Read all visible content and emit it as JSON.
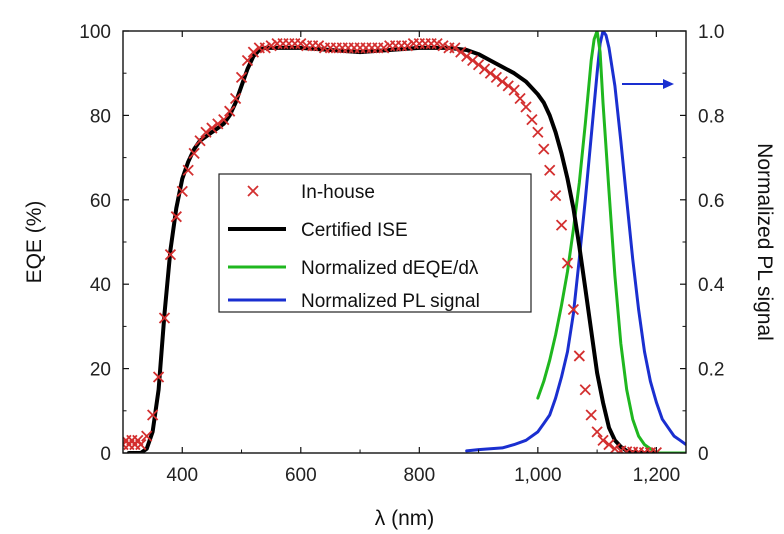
{
  "chart_data": {
    "type": "line",
    "title": "",
    "xlabel": "λ (nm)",
    "ylabel_left": "EQE (%)",
    "ylabel_right": "Normalized PL signal",
    "xlim": [
      300,
      1250
    ],
    "ylim_left": [
      0,
      100
    ],
    "ylim_right": [
      0,
      1.0
    ],
    "xticks": [
      400,
      600,
      800,
      1000,
      1200
    ],
    "xtick_labels": [
      "400",
      "600",
      "800",
      "1,000",
      "1,200"
    ],
    "yticks_left": [
      0,
      20,
      40,
      60,
      80,
      100
    ],
    "ytick_labels_left": [
      "0",
      "20",
      "40",
      "60",
      "80",
      "100"
    ],
    "yticks_right": [
      0,
      0.2,
      0.4,
      0.6,
      0.8,
      1.0
    ],
    "ytick_labels_right": [
      "0",
      "0.2",
      "0.4",
      "0.6",
      "0.8",
      "1.0"
    ],
    "grid": false,
    "legend_position": "center-left",
    "annotations": [
      {
        "type": "arrow",
        "direction": "right",
        "points_to": "right-axis",
        "color": "#1a2fd0"
      }
    ],
    "series": [
      {
        "name": "In-house",
        "axis": "left",
        "style": "marker-x",
        "color": "#d32f2f",
        "x": [
          300,
          305,
          310,
          315,
          320,
          325,
          330,
          340,
          350,
          360,
          370,
          380,
          390,
          400,
          410,
          420,
          430,
          440,
          450,
          460,
          470,
          480,
          490,
          500,
          510,
          520,
          530,
          540,
          550,
          560,
          570,
          580,
          590,
          600,
          610,
          620,
          630,
          640,
          650,
          660,
          670,
          680,
          690,
          700,
          710,
          720,
          730,
          740,
          750,
          760,
          770,
          780,
          790,
          800,
          810,
          820,
          830,
          840,
          850,
          860,
          870,
          880,
          890,
          900,
          910,
          920,
          930,
          940,
          950,
          960,
          970,
          980,
          990,
          1000,
          1010,
          1020,
          1030,
          1040,
          1050,
          1060,
          1070,
          1080,
          1090,
          1100,
          1110,
          1120,
          1130,
          1140,
          1150,
          1160,
          1170,
          1180,
          1190,
          1200
        ],
        "y": [
          2,
          3,
          2,
          3,
          2,
          3,
          2,
          4,
          9,
          18,
          32,
          47,
          56,
          62,
          67,
          71,
          74,
          76,
          77,
          78,
          79,
          81,
          84,
          89,
          93,
          95,
          96,
          96,
          96.5,
          97,
          97,
          97,
          97,
          97,
          96.5,
          96.5,
          96.5,
          96,
          96,
          96,
          96,
          96,
          96,
          96,
          96,
          96,
          96,
          96,
          96.5,
          96.5,
          96.5,
          96.5,
          97,
          97,
          97,
          97,
          97,
          96.5,
          96,
          96,
          95,
          94,
          93,
          92,
          91,
          90,
          89,
          88,
          87,
          86,
          84,
          82,
          79,
          76,
          72,
          67,
          61,
          54,
          45,
          34,
          23,
          15,
          9,
          5,
          3,
          2,
          1,
          0.5,
          0.3,
          0.2,
          0.2,
          0.1,
          0.1,
          0.1
        ]
      },
      {
        "name": "Certified ISE",
        "axis": "left",
        "style": "line",
        "color": "#000000",
        "x": [
          310,
          320,
          330,
          340,
          350,
          360,
          370,
          380,
          390,
          400,
          410,
          420,
          430,
          440,
          450,
          460,
          470,
          480,
          490,
          500,
          510,
          520,
          530,
          540,
          550,
          560,
          580,
          600,
          650,
          700,
          750,
          800,
          850,
          880,
          900,
          920,
          940,
          960,
          980,
          1000,
          1010,
          1020,
          1030,
          1040,
          1050,
          1060,
          1070,
          1080,
          1090,
          1100,
          1110,
          1120,
          1130,
          1140,
          1150,
          1160,
          1170,
          1180,
          1200
        ],
        "y": [
          0,
          0,
          0,
          1,
          5,
          15,
          33,
          48,
          58,
          65,
          69,
          72,
          74,
          75,
          76,
          77,
          78,
          80,
          83,
          87,
          91,
          94,
          95.5,
          96,
          96,
          96,
          96,
          96,
          95.5,
          95,
          95.5,
          96,
          96,
          95.5,
          94.5,
          93,
          91.5,
          90,
          88,
          85,
          83,
          80,
          76,
          71,
          65,
          58,
          49,
          39,
          29,
          19,
          12,
          6,
          3,
          1.5,
          0.5,
          0.2,
          0,
          0,
          0
        ]
      },
      {
        "name": "Normalized dEQE/dλ",
        "axis": "right",
        "style": "line",
        "color": "#1fb71f",
        "x": [
          1000,
          1010,
          1020,
          1030,
          1040,
          1050,
          1060,
          1070,
          1080,
          1090,
          1095,
          1100,
          1105,
          1110,
          1120,
          1130,
          1140,
          1150,
          1160,
          1170,
          1180,
          1190,
          1200,
          1220,
          1250
        ],
        "y": [
          0.13,
          0.17,
          0.22,
          0.28,
          0.35,
          0.43,
          0.53,
          0.64,
          0.78,
          0.93,
          0.98,
          1.0,
          0.95,
          0.83,
          0.62,
          0.42,
          0.26,
          0.15,
          0.08,
          0.04,
          0.02,
          0.01,
          0.0,
          0.0,
          0.0
        ]
      },
      {
        "name": "Normalized PL signal",
        "axis": "right",
        "style": "line",
        "color": "#1a2fd0",
        "x": [
          880,
          900,
          920,
          940,
          960,
          980,
          1000,
          1010,
          1020,
          1030,
          1040,
          1050,
          1060,
          1070,
          1080,
          1090,
          1100,
          1105,
          1110,
          1115,
          1120,
          1130,
          1140,
          1150,
          1160,
          1170,
          1180,
          1190,
          1200,
          1210,
          1220,
          1230,
          1240,
          1250
        ],
        "y": [
          0.005,
          0.008,
          0.01,
          0.012,
          0.02,
          0.03,
          0.05,
          0.07,
          0.09,
          0.13,
          0.18,
          0.24,
          0.33,
          0.46,
          0.6,
          0.75,
          0.9,
          0.97,
          1.0,
          0.99,
          0.96,
          0.87,
          0.74,
          0.6,
          0.46,
          0.34,
          0.24,
          0.17,
          0.12,
          0.08,
          0.06,
          0.04,
          0.03,
          0.02
        ]
      }
    ]
  }
}
